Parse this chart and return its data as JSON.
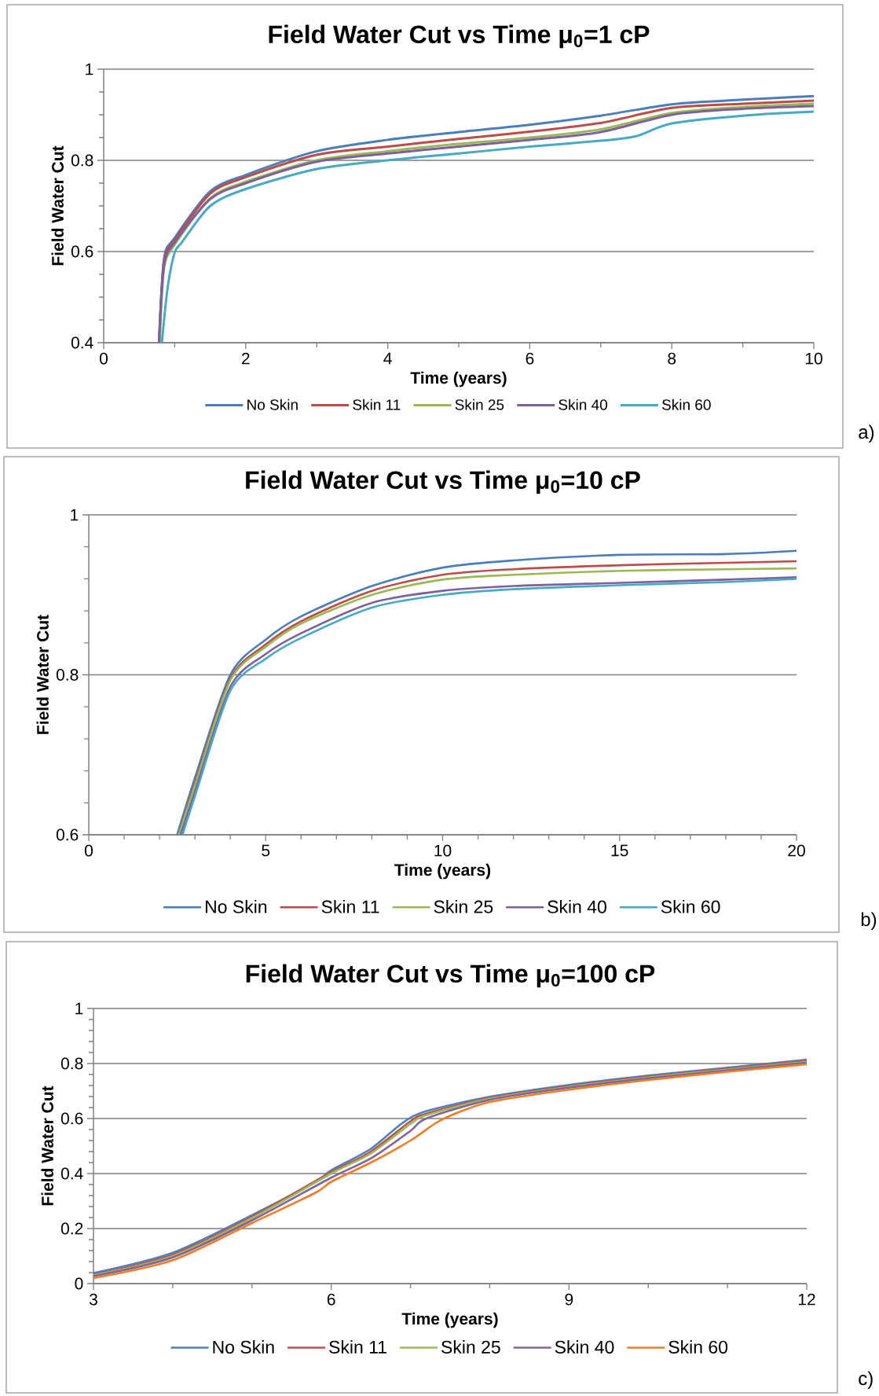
{
  "chart_data": [
    {
      "type": "line",
      "title": "Field Water Cut vs Time μ$_{0}$=1 cP",
      "xlabel": "Time (years)",
      "ylabel": "Field Water Cut",
      "xlim": [
        0,
        10
      ],
      "ylim": [
        0.4,
        1
      ],
      "xticks": [
        0,
        2,
        4,
        6,
        8,
        10
      ],
      "yticks": [
        0.4,
        0.6,
        0.8,
        1
      ],
      "grid": "y",
      "legend": "bottom",
      "annotations": [
        "a)"
      ],
      "series": [
        {
          "name": "No Skin",
          "color": "#4a7ebb",
          "x": [
            0.78,
            0.85,
            1.0,
            1.5,
            2,
            3,
            4,
            5,
            6,
            7,
            8,
            9,
            10
          ],
          "values": [
            0.4,
            0.584,
            0.63,
            0.732,
            0.768,
            0.82,
            0.845,
            0.862,
            0.878,
            0.898,
            0.923,
            0.933,
            0.941
          ]
        },
        {
          "name": "Skin 11",
          "color": "#be4b48",
          "x": [
            0.78,
            0.85,
            1.0,
            1.5,
            2,
            3,
            4,
            5,
            6,
            7,
            8,
            9,
            10
          ],
          "values": [
            0.4,
            0.578,
            0.625,
            0.727,
            0.763,
            0.812,
            0.83,
            0.847,
            0.863,
            0.882,
            0.915,
            0.924,
            0.931
          ]
        },
        {
          "name": "Skin 25",
          "color": "#98b954",
          "x": [
            0.79,
            0.85,
            1.0,
            1.5,
            2,
            3,
            4,
            5,
            6,
            7,
            8,
            9,
            10
          ],
          "values": [
            0.4,
            0.563,
            0.615,
            0.717,
            0.753,
            0.8,
            0.82,
            0.836,
            0.85,
            0.868,
            0.904,
            0.917,
            0.924
          ]
        },
        {
          "name": "Skin 40",
          "color": "#7d60a0",
          "x": [
            0.78,
            0.85,
            1.0,
            1.5,
            2,
            3,
            4,
            5,
            6,
            7,
            8,
            9,
            10
          ],
          "values": [
            0.4,
            0.57,
            0.62,
            0.715,
            0.75,
            0.797,
            0.815,
            0.83,
            0.845,
            0.862,
            0.9,
            0.913,
            0.919
          ]
        },
        {
          "name": "Skin 60",
          "color": "#46aac5",
          "x": [
            0.82,
            0.9,
            1.0,
            1.1,
            1.5,
            2,
            3,
            4,
            5,
            6,
            7,
            7.5,
            8,
            9,
            10
          ],
          "values": [
            0.4,
            0.52,
            0.598,
            0.62,
            0.7,
            0.737,
            0.781,
            0.8,
            0.815,
            0.83,
            0.843,
            0.853,
            0.881,
            0.898,
            0.907
          ]
        }
      ]
    },
    {
      "type": "line",
      "title": "Field Water Cut vs Time μ$_{0}$=10 cP",
      "xlabel": "Time (years)",
      "ylabel": "Field Water Cut",
      "xlim": [
        0,
        20
      ],
      "ylim": [
        0.6,
        1
      ],
      "xticks": [
        0,
        5,
        10,
        15,
        20
      ],
      "yticks": [
        0.6,
        0.8,
        1
      ],
      "grid": "y",
      "legend": "bottom",
      "annotations": [
        "b)"
      ],
      "series": [
        {
          "name": "No Skin",
          "color": "#4a7ebb",
          "x": [
            2.5,
            3,
            4,
            5,
            6,
            8,
            10,
            12,
            15,
            18,
            20
          ],
          "values": [
            0.6,
            0.671,
            0.8,
            0.844,
            0.873,
            0.911,
            0.934,
            0.943,
            0.95,
            0.951,
            0.955
          ]
        },
        {
          "name": "Skin 11",
          "color": "#be4b48",
          "x": [
            2.55,
            3,
            4,
            5,
            6,
            8,
            10,
            12,
            15,
            18,
            20
          ],
          "values": [
            0.6,
            0.665,
            0.795,
            0.838,
            0.867,
            0.905,
            0.925,
            0.932,
            0.937,
            0.94,
            0.942
          ]
        },
        {
          "name": "Skin 25",
          "color": "#98b954",
          "x": [
            2.55,
            3,
            4,
            5,
            6,
            8,
            10,
            12,
            15,
            18,
            20
          ],
          "values": [
            0.6,
            0.662,
            0.793,
            0.835,
            0.864,
            0.9,
            0.919,
            0.925,
            0.93,
            0.932,
            0.933
          ]
        },
        {
          "name": "Skin 40",
          "color": "#7d60a0",
          "x": [
            2.6,
            3,
            4,
            5,
            6,
            8,
            10,
            12,
            15,
            18,
            20
          ],
          "values": [
            0.6,
            0.654,
            0.785,
            0.826,
            0.852,
            0.89,
            0.905,
            0.911,
            0.915,
            0.919,
            0.922
          ]
        },
        {
          "name": "Skin 60",
          "color": "#46aac5",
          "x": [
            2.65,
            3,
            4,
            5,
            6,
            8,
            10,
            12,
            15,
            18,
            20
          ],
          "values": [
            0.6,
            0.648,
            0.78,
            0.82,
            0.846,
            0.884,
            0.9,
            0.907,
            0.912,
            0.916,
            0.92
          ]
        }
      ]
    },
    {
      "type": "line",
      "title": "Field Water Cut vs Time μ$_{0}$=100 cP",
      "xlabel": "Time (years)",
      "ylabel": "Field Water Cut",
      "xlim": [
        3,
        12
      ],
      "ylim": [
        0,
        1
      ],
      "xticks": [
        3,
        6,
        9,
        12
      ],
      "yticks": [
        0,
        0.2,
        0.4,
        0.6,
        0.8,
        1
      ],
      "grid": "y",
      "legend": "bottom",
      "annotations": [
        "c)"
      ],
      "series": [
        {
          "name": "No Skin",
          "color": "#4f81bd",
          "x": [
            3,
            4,
            5,
            5.8,
            6,
            6.5,
            6.9,
            7.2,
            8,
            9,
            10,
            11,
            12
          ],
          "values": [
            0.038,
            0.112,
            0.249,
            0.37,
            0.412,
            0.49,
            0.584,
            0.627,
            0.679,
            0.722,
            0.756,
            0.785,
            0.814
          ]
        },
        {
          "name": "Skin 11",
          "color": "#c0504d",
          "x": [
            3,
            4,
            5,
            6,
            6.5,
            7,
            7.2,
            8,
            9,
            10,
            11,
            12
          ],
          "values": [
            0.032,
            0.105,
            0.243,
            0.405,
            0.48,
            0.59,
            0.618,
            0.675,
            0.718,
            0.752,
            0.781,
            0.81
          ]
        },
        {
          "name": "Skin 25",
          "color": "#9bbb59",
          "x": [
            3,
            4,
            5,
            6,
            6.5,
            7,
            7.2,
            8,
            9,
            10,
            11,
            12
          ],
          "values": [
            0.03,
            0.1,
            0.238,
            0.4,
            0.473,
            0.58,
            0.612,
            0.672,
            0.715,
            0.749,
            0.778,
            0.806
          ]
        },
        {
          "name": "Skin 40",
          "color": "#8064a2",
          "x": [
            3,
            4,
            5,
            6,
            6.5,
            7,
            7.2,
            8,
            9,
            10,
            11,
            12
          ],
          "values": [
            0.027,
            0.095,
            0.23,
            0.385,
            0.455,
            0.555,
            0.6,
            0.668,
            0.712,
            0.746,
            0.775,
            0.803
          ]
        },
        {
          "name": "Skin 60",
          "color": "#f07d22",
          "x": [
            3,
            4,
            5,
            5.8,
            6,
            6.5,
            7,
            7.3,
            7.5,
            8,
            9,
            10,
            11,
            12
          ],
          "values": [
            0.02,
            0.085,
            0.22,
            0.33,
            0.37,
            0.44,
            0.52,
            0.58,
            0.61,
            0.66,
            0.705,
            0.74,
            0.77,
            0.797
          ]
        }
      ]
    }
  ]
}
